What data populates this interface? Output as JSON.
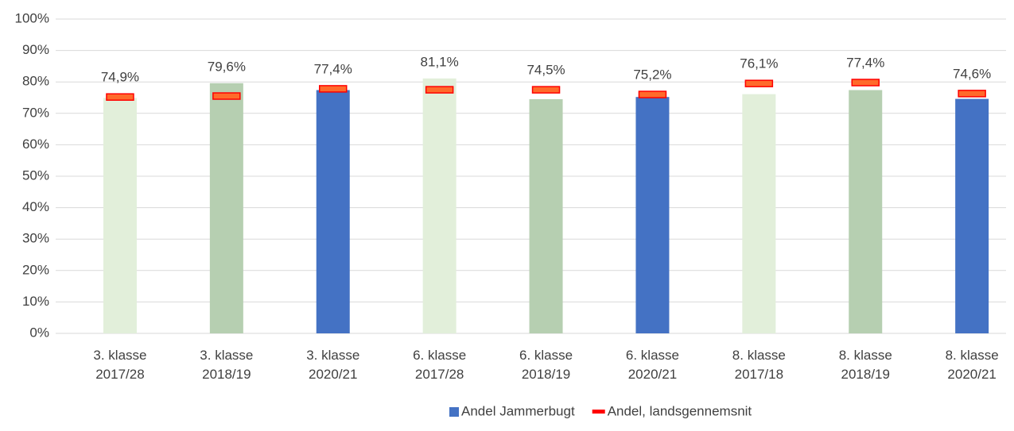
{
  "chart_data": {
    "type": "bar",
    "categories": [
      [
        "3. klasse",
        "2017/28"
      ],
      [
        "3. klasse",
        "2018/19"
      ],
      [
        "3. klasse",
        "2020/21"
      ],
      [
        "6. klasse",
        "2017/28"
      ],
      [
        "6. klasse",
        "2018/19"
      ],
      [
        "6. klasse",
        "2020/21"
      ],
      [
        "8. klasse",
        "2017/18"
      ],
      [
        "8. klasse",
        "2018/19"
      ],
      [
        "8. klasse",
        "2020/21"
      ]
    ],
    "series": [
      {
        "name": "Andel Jammerbugt",
        "color": "#4472c4",
        "colors": [
          "#e2efda",
          "#b6cfb1",
          "#4472c4",
          "#e2efda",
          "#b6cfb1",
          "#4472c4",
          "#e2efda",
          "#b6cfb1",
          "#4472c4"
        ],
        "values": [
          74.9,
          79.6,
          77.4,
          81.1,
          74.5,
          75.2,
          76.1,
          77.4,
          74.6
        ],
        "value_labels": [
          "74,9%",
          "79,6%",
          "77,4%",
          "81,1%",
          "74,5%",
          "75,2%",
          "76,1%",
          "77,4%",
          "74,6%"
        ]
      },
      {
        "name": "Andel, landsgennemsnit",
        "color": "#ff0000",
        "marker": "dash",
        "values": [
          75.2,
          75.5,
          77.8,
          77.5,
          77.5,
          76.0,
          79.5,
          79.8,
          76.3
        ]
      }
    ],
    "ylim": [
      0,
      100
    ],
    "yticks": [
      {
        "value": 0,
        "label": "0%"
      },
      {
        "value": 10,
        "label": "10%"
      },
      {
        "value": 20,
        "label": "20%"
      },
      {
        "value": 30,
        "label": "30%"
      },
      {
        "value": 40,
        "label": "40%"
      },
      {
        "value": 50,
        "label": "50%"
      },
      {
        "value": 60,
        "label": "60%"
      },
      {
        "value": 70,
        "label": "70%"
      },
      {
        "value": 80,
        "label": "80%"
      },
      {
        "value": 90,
        "label": "90%"
      },
      {
        "value": 100,
        "label": "100%"
      }
    ],
    "grid": true,
    "legend": "bottom"
  }
}
